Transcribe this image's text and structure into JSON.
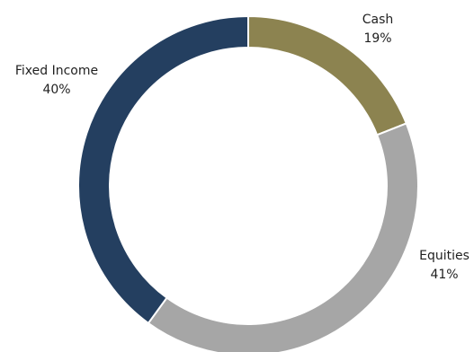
{
  "chart_data": {
    "type": "pie",
    "variant": "donut",
    "categories": [
      "Cash",
      "Equities",
      "Fixed Income"
    ],
    "values": [
      19,
      41,
      40
    ],
    "labels": [
      "19%",
      "41%",
      "40%"
    ],
    "colors": [
      "#8C8350",
      "#A6A6A6",
      "#243F60"
    ],
    "start_angle_deg": 0,
    "direction": "clockwise",
    "gap_between_slices": "white",
    "title": "",
    "legend": "none",
    "data_labels": "outside"
  }
}
